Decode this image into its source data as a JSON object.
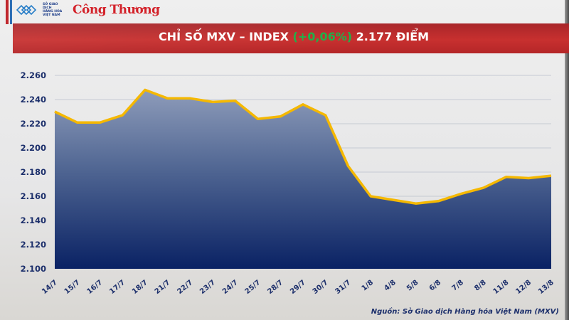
{
  "header": {
    "logo_mxv_lines": [
      "SỞ GIAO DỊCH",
      "HÀNG HÓA",
      "VIỆT NAM"
    ],
    "logo_congthuong": "Công Thương"
  },
  "title": {
    "prefix": "CHỈ SỐ MXV – INDEX ",
    "change": "(+0,06%)",
    "suffix": " 2.177 ĐIỂM",
    "change_color": "#1fb24a"
  },
  "source": "Nguồn: Sở Giao dịch Hàng hóa Việt Nam (MXV)",
  "colors": {
    "title_band": "#c0292d",
    "line": "#f5b800",
    "area_top": "#8b9ab8",
    "area_bottom": "#0c2466",
    "axis_text": "#1c2f6b"
  },
  "chart_data": {
    "type": "area",
    "title": "CHỈ SỐ MXV – INDEX (+0,06%) 2.177 ĐIỂM",
    "xlabel": "",
    "ylabel": "",
    "categories": [
      "14/7",
      "15/7",
      "16/7",
      "17/7",
      "18/7",
      "21/7",
      "22/7",
      "23/7",
      "24/7",
      "25/7",
      "28/7",
      "29/7",
      "30/7",
      "31/7",
      "1/8",
      "4/8",
      "5/8",
      "6/8",
      "7/8",
      "8/8",
      "11/8",
      "12/8",
      "13/8"
    ],
    "values": [
      2230,
      2221,
      2221,
      2227,
      2248,
      2241,
      2241,
      2238,
      2239,
      2224,
      2226,
      2236,
      2227,
      2185,
      2160,
      2157,
      2154,
      2156,
      2162,
      2167,
      2176,
      2175,
      2177
    ],
    "ylim": [
      2100,
      2260
    ],
    "yticks": [
      "2.100",
      "2.120",
      "2.140",
      "2.160",
      "2.180",
      "2.200",
      "2.220",
      "2.240",
      "2.260"
    ],
    "grid": true,
    "legend": "none"
  }
}
